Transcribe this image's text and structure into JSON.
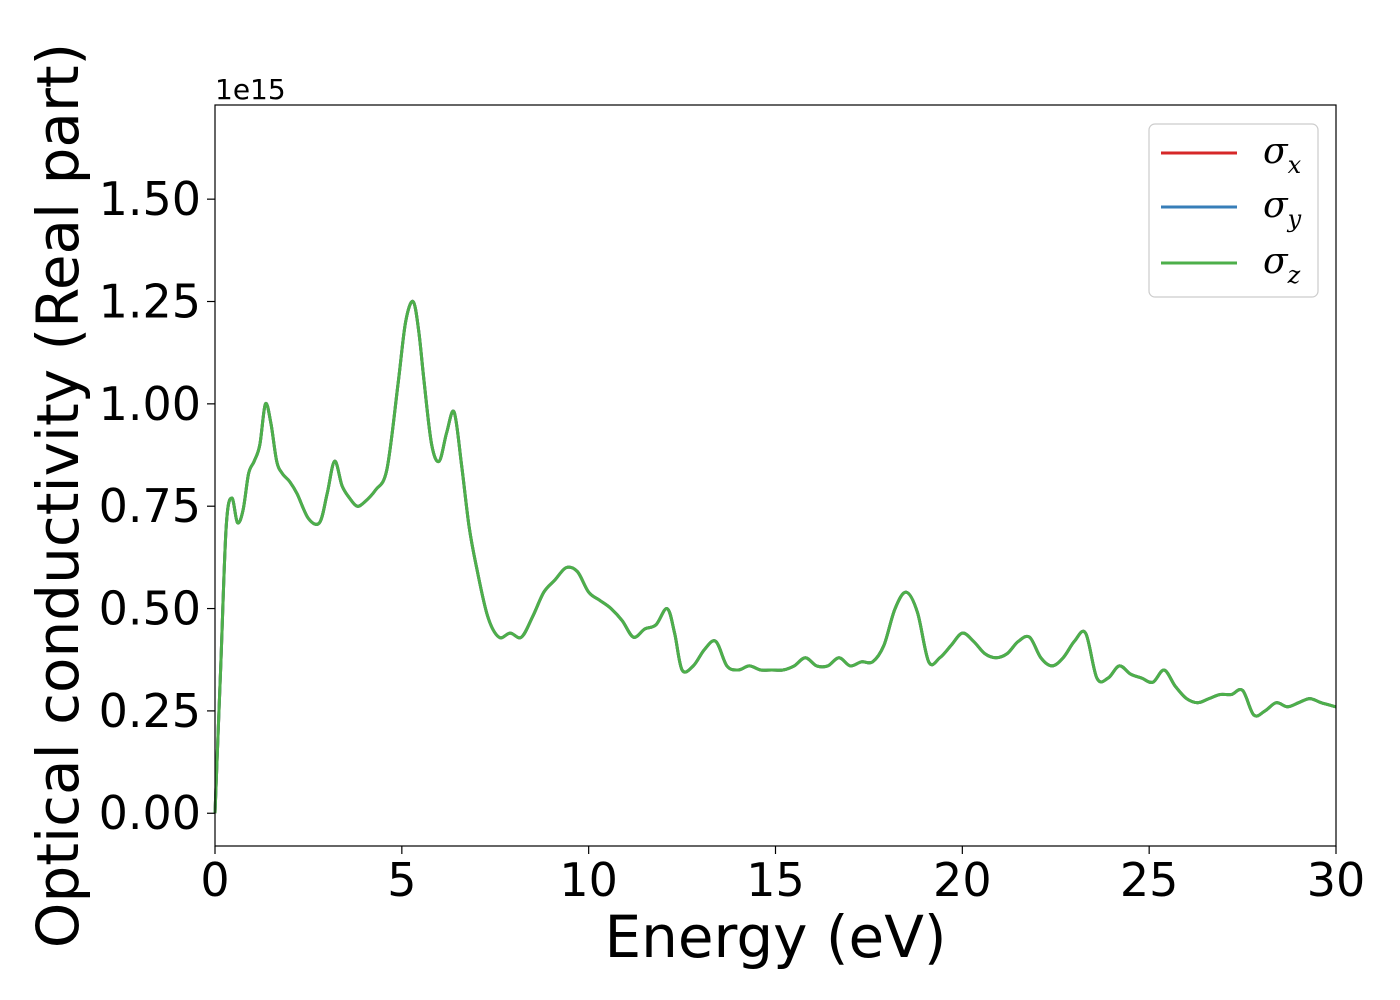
{
  "chart_data": {
    "type": "line",
    "xlabel": "Energy (eV)",
    "ylabel": "Optical conductivity (Real part)",
    "y_offset_label": "1e15",
    "xlim": [
      0,
      30
    ],
    "ylim": [
      -0.08,
      1.73
    ],
    "y_unit_multiplier": 1000000000000000.0,
    "x_ticks": [
      0,
      5,
      10,
      15,
      20,
      25,
      30
    ],
    "x_tick_labels": [
      "0",
      "5",
      "10",
      "15",
      "20",
      "25",
      "30"
    ],
    "y_ticks": [
      0.0,
      0.25,
      0.5,
      0.75,
      1.0,
      1.25,
      1.5
    ],
    "y_tick_labels": [
      "0.00",
      "0.25",
      "0.50",
      "0.75",
      "1.00",
      "1.25",
      "1.50"
    ],
    "grid": false,
    "legend_position": "top-right",
    "series": [
      {
        "name": "σx",
        "symbol": "σ",
        "subscript": "x",
        "color": "#d62728"
      },
      {
        "name": "σy",
        "symbol": "σ",
        "subscript": "y",
        "color": "#377eb8"
      },
      {
        "name": "σz",
        "symbol": "σ",
        "subscript": "z",
        "color": "#4daf4a"
      }
    ],
    "x": [
      0,
      0.15,
      0.3,
      0.45,
      0.6,
      0.75,
      0.9,
      1.05,
      1.2,
      1.35,
      1.5,
      1.65,
      1.8,
      2.0,
      2.2,
      2.5,
      2.8,
      3.0,
      3.2,
      3.4,
      3.6,
      3.8,
      4.0,
      4.3,
      4.6,
      4.9,
      5.1,
      5.3,
      5.45,
      5.6,
      5.8,
      6.0,
      6.2,
      6.4,
      6.6,
      6.8,
      7.0,
      7.3,
      7.6,
      7.9,
      8.2,
      8.5,
      8.8,
      9.1,
      9.4,
      9.7,
      10.0,
      10.3,
      10.6,
      10.9,
      11.2,
      11.5,
      11.8,
      12.1,
      12.3,
      12.5,
      12.8,
      13.1,
      13.4,
      13.7,
      14.0,
      14.3,
      14.6,
      14.9,
      15.2,
      15.5,
      15.8,
      16.1,
      16.4,
      16.7,
      17.0,
      17.3,
      17.6,
      17.9,
      18.2,
      18.5,
      18.8,
      19.1,
      19.4,
      19.7,
      20.0,
      20.3,
      20.6,
      20.9,
      21.2,
      21.5,
      21.8,
      22.1,
      22.4,
      22.7,
      23.0,
      23.3,
      23.6,
      23.9,
      24.2,
      24.5,
      24.8,
      25.1,
      25.4,
      25.7,
      26.0,
      26.3,
      26.6,
      26.9,
      27.2,
      27.5,
      27.8,
      28.1,
      28.4,
      28.7,
      29.0,
      29.3,
      29.6,
      30.0
    ],
    "y": [
      0.0,
      0.35,
      0.7,
      0.77,
      0.71,
      0.74,
      0.83,
      0.86,
      0.9,
      1.0,
      0.95,
      0.86,
      0.83,
      0.81,
      0.78,
      0.72,
      0.71,
      0.78,
      0.86,
      0.8,
      0.77,
      0.75,
      0.76,
      0.79,
      0.84,
      1.05,
      1.2,
      1.25,
      1.18,
      1.05,
      0.9,
      0.86,
      0.93,
      0.98,
      0.85,
      0.7,
      0.6,
      0.48,
      0.43,
      0.44,
      0.43,
      0.48,
      0.54,
      0.57,
      0.6,
      0.59,
      0.54,
      0.52,
      0.5,
      0.47,
      0.43,
      0.45,
      0.46,
      0.5,
      0.44,
      0.35,
      0.36,
      0.4,
      0.42,
      0.36,
      0.35,
      0.36,
      0.35,
      0.35,
      0.35,
      0.36,
      0.38,
      0.36,
      0.36,
      0.38,
      0.36,
      0.37,
      0.37,
      0.41,
      0.5,
      0.54,
      0.49,
      0.37,
      0.38,
      0.41,
      0.44,
      0.42,
      0.39,
      0.38,
      0.39,
      0.42,
      0.43,
      0.38,
      0.36,
      0.38,
      0.42,
      0.44,
      0.33,
      0.33,
      0.36,
      0.34,
      0.33,
      0.32,
      0.35,
      0.31,
      0.28,
      0.27,
      0.28,
      0.29,
      0.29,
      0.3,
      0.24,
      0.25,
      0.27,
      0.26,
      0.27,
      0.28,
      0.27,
      0.26
    ]
  }
}
